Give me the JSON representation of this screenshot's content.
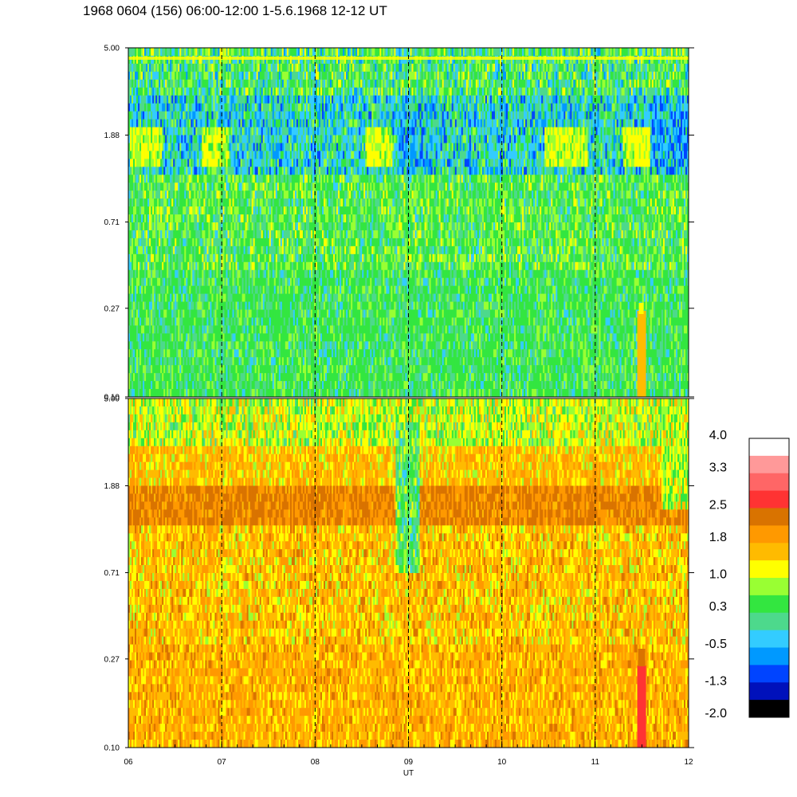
{
  "title": "1968 0604 (156) 06:00-12:00 1-5.6.1968  12-12 UT",
  "chart_data": {
    "type": "heatmap",
    "panels": [
      {
        "name": "",
        "yticks": [
          "5.00",
          "1.88",
          "0.71",
          "0.27",
          "0.10"
        ],
        "ylim": [
          0.1,
          5.0
        ],
        "yscale": "log",
        "dominant_levels": [
          "0.3",
          "-0.5",
          "1.0"
        ]
      },
      {
        "name": "",
        "yticks": [
          "5.00",
          "1.88",
          "0.71",
          "0.27",
          "0.10"
        ],
        "ylim": [
          0.1,
          5.0
        ],
        "yscale": "log",
        "dominant_levels": [
          "1.8",
          "1.0",
          "2.5"
        ]
      }
    ],
    "xticks": [
      "06",
      "07",
      "08",
      "09",
      "10",
      "11",
      "12"
    ],
    "xlim": [
      6,
      12
    ],
    "xlabel": "UT",
    "vertical_dashed_lines_at": [
      7,
      8,
      9,
      10,
      11
    ],
    "colorbar": {
      "labels": [
        "4.0",
        "3.3",
        "2.5",
        "1.8",
        "1.0",
        "0.3",
        "-0.5",
        "-1.3",
        "-2.0"
      ],
      "range": [
        -2.0,
        4.0
      ],
      "colors": [
        "#ffffff",
        "#ff9999",
        "#ff6666",
        "#ff3333",
        "#d97300",
        "#ff9900",
        "#ffbb00",
        "#ffff00",
        "#99ff33",
        "#33e640",
        "#4dd98c",
        "#33ccff",
        "#0099ff",
        "#0044ff",
        "#0011bb",
        "#000000"
      ]
    }
  }
}
